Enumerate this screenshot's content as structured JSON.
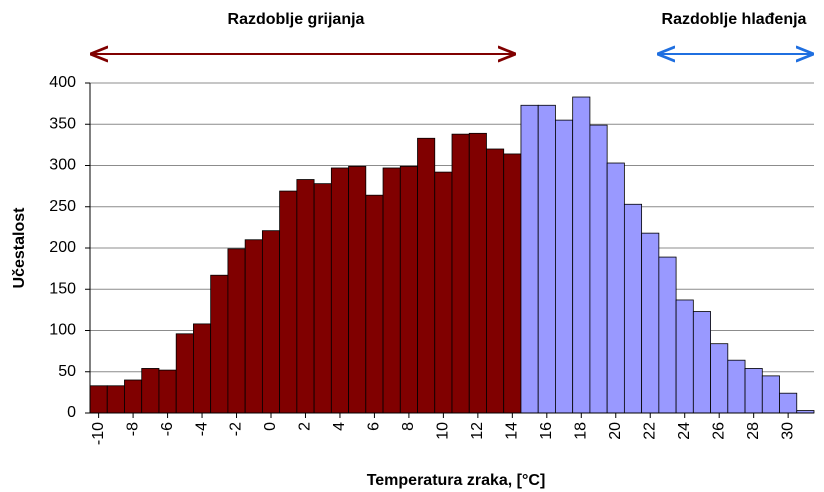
{
  "chart_data": {
    "type": "histogram",
    "annotations": [
      "Razdoblje grijanja",
      "Razdoblje hlađenja"
    ],
    "x_label": "Temperatura zraka, [°C]",
    "y_label": "Učestalost",
    "series": [
      {
        "name": "Razdoblje grijanja",
        "color": "#800000",
        "bins": [
          -10.5,
          -9.5,
          -8.5,
          -7.5,
          -6.5,
          -5.5,
          -4.5,
          -3.5,
          -2.5,
          -1.5,
          -0.5,
          0.5,
          1.5,
          2.5,
          3.5,
          4.5,
          5.5,
          6.5,
          7.5,
          8.5,
          9.5,
          10.5,
          11.5,
          12.5,
          13.5,
          14.5
        ],
        "values": [
          33,
          33,
          40,
          54,
          52,
          96,
          108,
          167,
          199,
          210,
          221,
          269,
          283,
          278,
          297,
          299,
          264,
          297,
          299,
          333,
          292,
          338,
          339,
          320,
          314
        ]
      },
      {
        "name": "Razdoblje hlađenja",
        "color": "#9999ff",
        "bins": [
          14.5,
          15.5,
          16.5,
          17.5,
          18.5,
          19.5,
          20.5,
          21.5,
          22.5,
          23.5,
          24.5,
          25.5,
          26.5,
          27.5,
          28.5,
          29.5,
          30.5,
          31.5
        ],
        "values": [
          373,
          373,
          355,
          383,
          349,
          303,
          253,
          218,
          189,
          137,
          123,
          84,
          64,
          54,
          45,
          24,
          3
        ]
      }
    ],
    "xlim": [
      -10.5,
      31.5
    ],
    "xticks": [
      -10,
      -8,
      -6,
      -4,
      -2,
      0,
      2,
      4,
      6,
      8,
      10,
      12,
      14,
      16,
      18,
      20,
      22,
      24,
      26,
      28,
      30
    ],
    "ylim": [
      0,
      400
    ],
    "yticks": [
      0,
      50,
      100,
      150,
      200,
      250,
      300,
      350,
      400
    ],
    "grid": true
  }
}
